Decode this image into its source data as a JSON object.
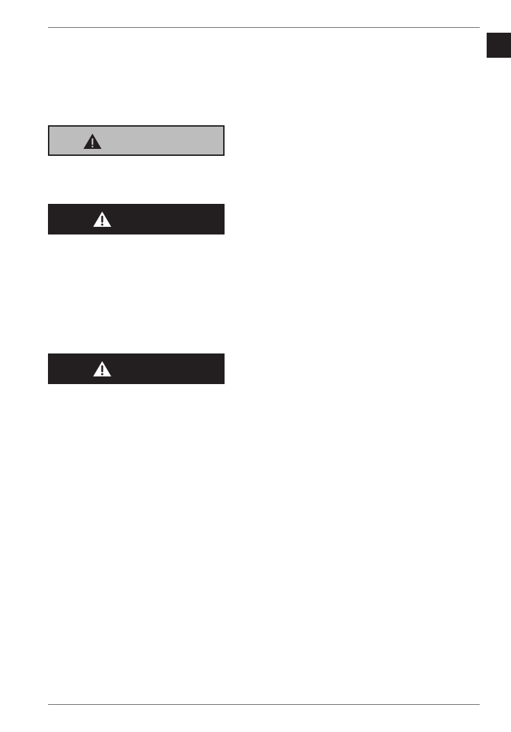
{
  "colors": {
    "dark": "#231f20",
    "gray": "#bdbdbd",
    "rule": "#6b6b6b"
  },
  "warning_boxes": [
    {
      "style": "gray",
      "icon": "warning-triangle-icon"
    },
    {
      "style": "dark",
      "icon": "warning-triangle-icon"
    },
    {
      "style": "dark",
      "icon": "warning-triangle-icon"
    }
  ]
}
